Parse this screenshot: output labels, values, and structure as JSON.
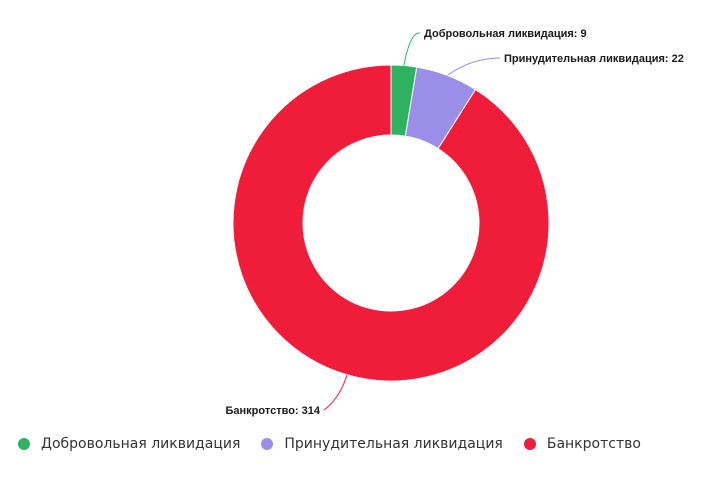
{
  "chart_data": {
    "type": "pie",
    "variant": "donut",
    "title": "",
    "categories": [
      "Добровольная ликвидация",
      "Принудительная ликвидация",
      "Банкротство"
    ],
    "values": [
      9,
      22,
      314
    ],
    "colors": [
      "#2eb25f",
      "#9b8ee8",
      "#ef1c3a"
    ],
    "data_labels": [
      "Добровольная ликвидация: 9",
      "Принудительная ликвидация: 22",
      "Банкротство: 314"
    ],
    "legend": {
      "placement": "bottom-left",
      "items": [
        {
          "label": "Добровольная ликвидация",
          "color": "#2eb25f"
        },
        {
          "label": "Принудительная ликвидация",
          "color": "#9b8ee8"
        },
        {
          "label": "Банкротство",
          "color": "#ef1c3a"
        }
      ]
    }
  }
}
